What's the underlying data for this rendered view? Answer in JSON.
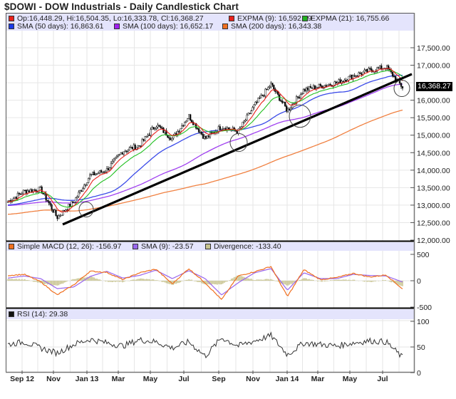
{
  "chart_data": [
    {
      "type": "candlestick",
      "title": "$DOWI - DOW Industrials - Daily Candlestick Chart",
      "symbol": "$DOWI",
      "ohlc_last": {
        "open": 16448.29,
        "high": 16504.35,
        "low": 16333.78,
        "close": 16368.27
      },
      "legend": [
        {
          "label": "Op:16,448.29, Hi:16,504.35, Lo:16,333.78, Cl:16,368.27",
          "color": "#e8201a"
        },
        {
          "label": "EXPMA (9): 16,592.29",
          "color": "#e8201a"
        },
        {
          "label": "EXPMA (21): 16,755.66",
          "color": "#22b022"
        },
        {
          "label": "SMA (50 days): 16,863.61",
          "color": "#1a3ae8"
        },
        {
          "label": "SMA (100 days): 16,652.17",
          "color": "#a020f0"
        },
        {
          "label": "SMA (200 days): 16,343.38",
          "color": "#f07020"
        }
      ],
      "x_tick_labels": [
        "Sep 12",
        "Nov",
        "Jan 13",
        "Mar",
        "May",
        "Jul",
        "Sep",
        "Nov",
        "Jan 14",
        "Mar",
        "May",
        "Jul"
      ],
      "y_tick_labels": [
        "17,500.00",
        "17,000.00",
        "16,000.00",
        "15,500.00",
        "15,000.00",
        "14,500.00",
        "14,000.00",
        "13,500.00",
        "13,000.00",
        "12,500.00",
        "12,000.00"
      ],
      "ylim": [
        12000,
        17750
      ],
      "last_price_label": "16,368.27",
      "annotations": [
        "Rising black trendline from Nov 2012 low (~12,500) to Aug 2014 (~16,650)",
        "Circles marking trendline touches: Dec 2012, Oct 2013, Feb 2014, Aug 2014"
      ],
      "series": [
        {
          "name": "Close (approx)",
          "x": [
            "Aug 12",
            "Sep 12",
            "Oct 12",
            "Nov 12",
            "Dec 12",
            "Jan 13",
            "Feb 13",
            "Mar 13",
            "Apr 13",
            "May 13",
            "Jun 13",
            "Jul 13",
            "Aug 13",
            "Sep 13",
            "Oct 13",
            "Nov 13",
            "Dec 13",
            "Jan 14",
            "Feb 14",
            "Mar 14",
            "Apr 14",
            "May 14",
            "Jun 14",
            "Jul 14",
            "Aug 14"
          ],
          "values": [
            13100,
            13400,
            13450,
            12650,
            13100,
            13850,
            14000,
            14550,
            14700,
            15300,
            14900,
            15550,
            14900,
            15250,
            15100,
            15850,
            16450,
            15700,
            16300,
            16400,
            16500,
            16700,
            16850,
            16950,
            16368
          ]
        }
      ],
      "grid": true
    },
    {
      "type": "line",
      "title": "Simple MACD (12, 26)",
      "legend": [
        {
          "label": "Simple MACD (12, 26): -156.97",
          "color": "#f07020"
        },
        {
          "label": "SMA (9): -23.57",
          "color": "#9966ee"
        },
        {
          "label": "Divergence: -133.40",
          "color": "#c8c490"
        }
      ],
      "y_tick_labels": [
        "500",
        "0",
        "-500"
      ],
      "ylim": [
        -500,
        500
      ],
      "series": [
        {
          "name": "MACD",
          "values": [
            100,
            120,
            -20,
            -270,
            -80,
            180,
            160,
            20,
            150,
            220,
            -60,
            230,
            -40,
            -360,
            90,
            170,
            270,
            -300,
            210,
            20,
            60,
            140,
            70,
            110,
            -157
          ]
        },
        {
          "name": "Signal",
          "values": [
            50,
            90,
            40,
            -150,
            -120,
            80,
            180,
            50,
            100,
            200,
            40,
            190,
            40,
            -270,
            -40,
            150,
            230,
            -180,
            150,
            40,
            40,
            120,
            100,
            90,
            -24
          ]
        }
      ]
    },
    {
      "type": "line",
      "title": "RSI (14)",
      "legend": [
        {
          "label": "RSI (14): 29.38",
          "color": "#000000"
        }
      ],
      "y_tick_labels": [
        "100",
        "50",
        "0"
      ],
      "ylim": [
        0,
        100
      ],
      "series": [
        {
          "name": "RSI",
          "values": [
            55,
            60,
            48,
            38,
            55,
            65,
            58,
            52,
            64,
            60,
            48,
            60,
            32,
            68,
            52,
            62,
            72,
            35,
            58,
            55,
            52,
            58,
            62,
            60,
            29.38
          ]
        }
      ]
    }
  ],
  "header": {
    "title": "$DOWI - DOW Industrials - Daily Candlestick Chart"
  },
  "main_legend": {
    "ohlc": "Op:16,448.29, Hi:16,504.35, Lo:16,333.78, Cl:16,368.27",
    "ema9": "EXPMA (9): 16,592.29",
    "ema21": "EXPMA (21): 16,755.66",
    "sma50": "SMA (50 days): 16,863.61",
    "sma100": "SMA (100 days): 16,652.17",
    "sma200": "SMA (200 days): 16,343.38"
  },
  "macd_legend": {
    "macd": "Simple MACD (12, 26): -156.97",
    "signal": "SMA (9): -23.57",
    "div": "Divergence: -133.40"
  },
  "rsi_legend": {
    "rsi": "RSI (14): 29.38"
  },
  "last_price": "16,368.27",
  "y_main": [
    "17,500.00",
    "17,000.00",
    "16,000.00",
    "15,500.00",
    "15,000.00",
    "14,500.00",
    "14,000.00",
    "13,500.00",
    "13,000.00",
    "12,500.00",
    "12,000.00"
  ],
  "y_macd": [
    "500",
    "0",
    "-500"
  ],
  "y_rsi": [
    "100",
    "50",
    "0"
  ],
  "x_labels": [
    "Sep 12",
    "Nov",
    "Jan 13",
    "Mar",
    "May",
    "Jul",
    "Sep",
    "Nov",
    "Jan 14",
    "Mar",
    "May",
    "Jul"
  ],
  "colors": {
    "legend_band": "#e4e4fc",
    "grid": "#e6e6e6",
    "ema9": "#e8201a",
    "ema21": "#22b022",
    "sma50": "#3a4ae8",
    "sma100": "#a040f0",
    "sma200": "#f08040",
    "macd": "#f07020",
    "signal": "#9966ee",
    "div": "#c8c490"
  }
}
